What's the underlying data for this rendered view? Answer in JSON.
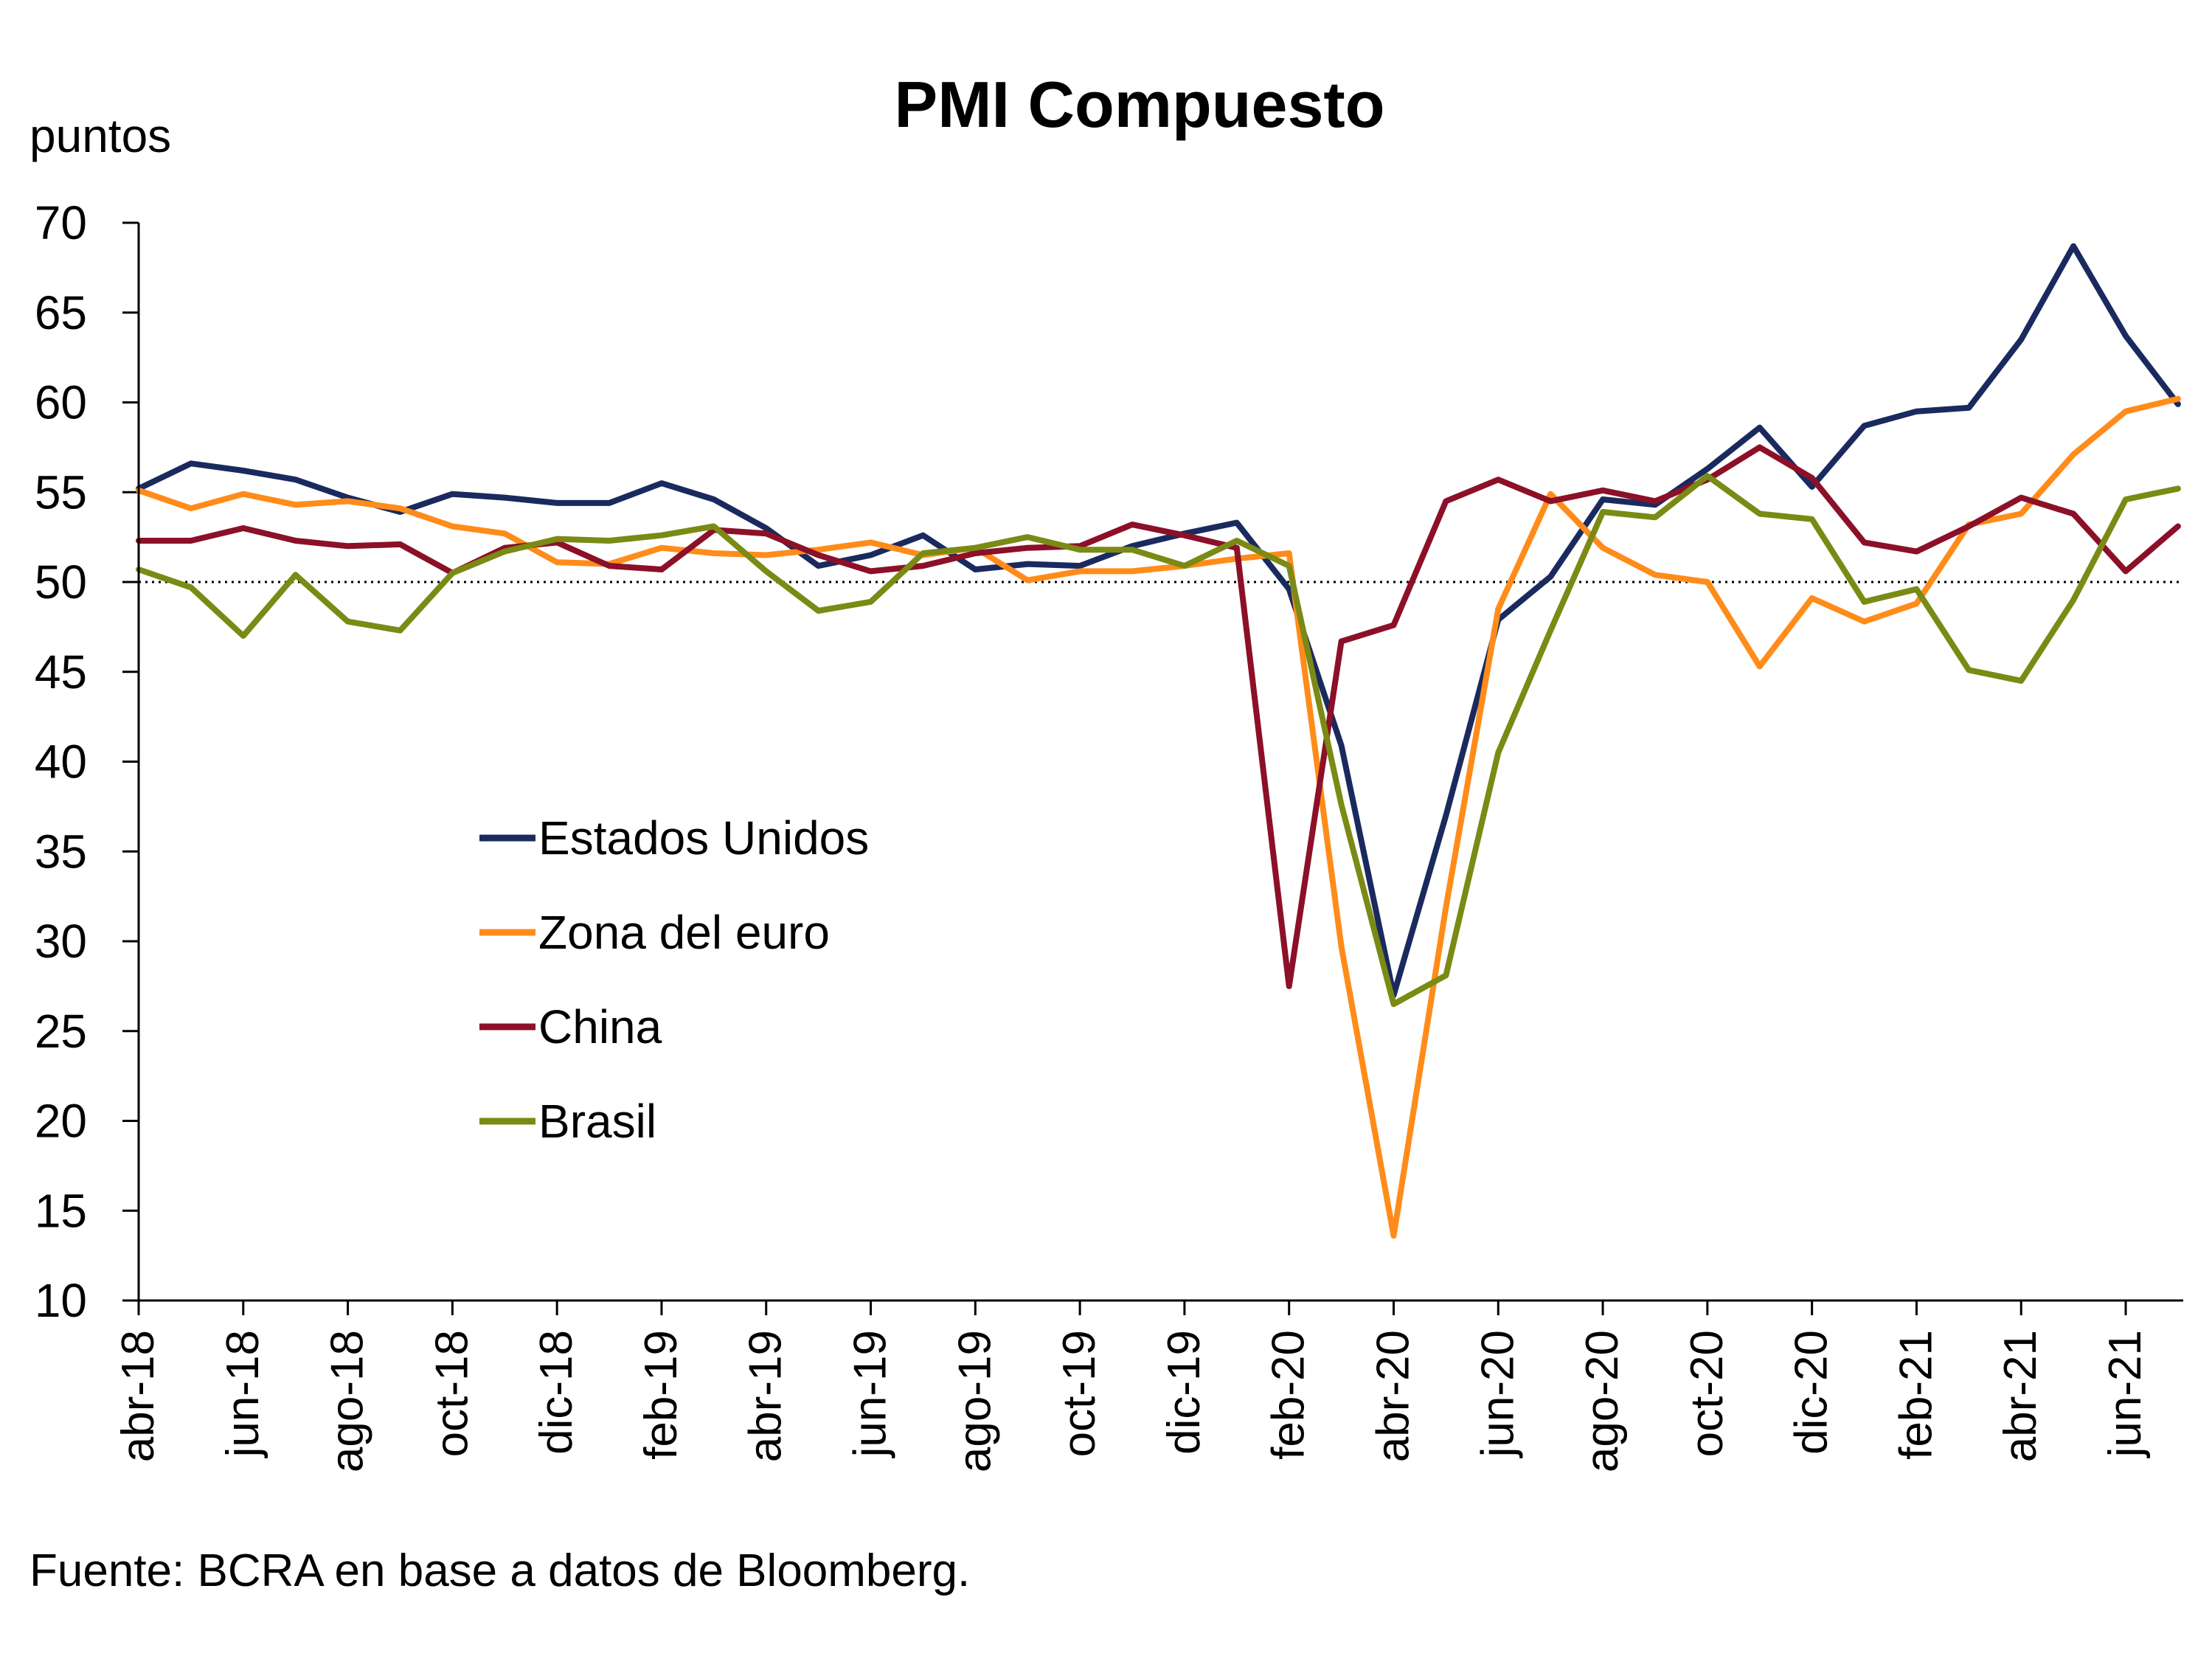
{
  "chart_data": {
    "type": "line",
    "title": "PMI Compuesto",
    "ylabel": "puntos",
    "xlabel": "",
    "ylim": [
      10,
      70
    ],
    "yticks": [
      10,
      15,
      20,
      25,
      30,
      35,
      40,
      45,
      50,
      55,
      60,
      65,
      70
    ],
    "reference_line": 50,
    "grid": false,
    "legend_position": "center-left",
    "x": [
      "abr-18",
      "may-18",
      "jun-18",
      "jul-18",
      "ago-18",
      "sep-18",
      "oct-18",
      "nov-18",
      "dic-18",
      "ene-19",
      "feb-19",
      "mar-19",
      "abr-19",
      "may-19",
      "jun-19",
      "jul-19",
      "ago-19",
      "sep-19",
      "oct-19",
      "nov-19",
      "dic-19",
      "ene-20",
      "feb-20",
      "mar-20",
      "abr-20",
      "may-20",
      "jun-20",
      "jul-20",
      "ago-20",
      "sep-20",
      "oct-20",
      "nov-20",
      "dic-20",
      "ene-21",
      "feb-21",
      "mar-21",
      "abr-21",
      "may-21",
      "jun-21",
      "jul-21"
    ],
    "x_tick_labels": [
      "abr-18",
      "jun-18",
      "ago-18",
      "oct-18",
      "dic-18",
      "feb-19",
      "abr-19",
      "jun-19",
      "ago-19",
      "oct-19",
      "dic-19",
      "feb-20",
      "abr-20",
      "jun-20",
      "ago-20",
      "oct-20",
      "dic-20",
      "feb-21",
      "abr-21",
      "jun-21"
    ],
    "series": [
      {
        "name": "Estados Unidos",
        "color": "#1a2a5e",
        "values": [
          55.2,
          56.6,
          56.2,
          55.7,
          54.7,
          53.9,
          54.9,
          54.7,
          54.4,
          54.4,
          55.5,
          54.6,
          53.0,
          50.9,
          51.5,
          52.6,
          50.7,
          51.0,
          50.9,
          52.0,
          52.7,
          53.3,
          49.6,
          40.9,
          27.0,
          37.0,
          47.9,
          50.3,
          54.6,
          54.3,
          56.3,
          58.6,
          55.3,
          58.7,
          59.5,
          59.7,
          63.5,
          68.7,
          63.7,
          59.9
        ]
      },
      {
        "name": "Zona del euro",
        "color": "#ff8c1a",
        "values": [
          55.1,
          54.1,
          54.9,
          54.3,
          54.5,
          54.1,
          53.1,
          52.7,
          51.1,
          51.0,
          51.9,
          51.6,
          51.5,
          51.8,
          52.2,
          51.5,
          51.9,
          50.1,
          50.6,
          50.6,
          50.9,
          51.3,
          51.6,
          29.7,
          13.6,
          31.9,
          48.5,
          54.9,
          51.9,
          50.4,
          50.0,
          45.3,
          49.1,
          47.8,
          48.8,
          53.2,
          53.8,
          57.1,
          59.5,
          60.2
        ]
      },
      {
        "name": "China",
        "color": "#8b1028",
        "values": [
          52.3,
          52.3,
          53.0,
          52.3,
          52.0,
          52.1,
          50.5,
          51.9,
          52.2,
          50.9,
          50.7,
          52.9,
          52.7,
          51.5,
          50.6,
          50.9,
          51.6,
          51.9,
          52.0,
          53.2,
          52.6,
          51.9,
          27.5,
          46.7,
          47.6,
          54.5,
          55.7,
          54.5,
          55.1,
          54.5,
          55.7,
          57.5,
          55.8,
          52.2,
          51.7,
          53.1,
          54.7,
          53.8,
          50.6,
          53.1
        ]
      },
      {
        "name": "Brasil",
        "color": "#7a8a14",
        "values": [
          50.7,
          49.7,
          47.0,
          50.4,
          47.8,
          47.3,
          50.5,
          51.7,
          52.4,
          52.3,
          52.6,
          53.1,
          50.6,
          48.4,
          48.9,
          51.6,
          51.9,
          52.5,
          51.8,
          51.8,
          50.9,
          52.3,
          50.9,
          37.6,
          26.5,
          28.1,
          40.5,
          47.3,
          53.9,
          53.6,
          55.9,
          53.8,
          53.5,
          48.9,
          49.6,
          45.1,
          44.5,
          49.0,
          54.6,
          55.2
        ]
      }
    ]
  },
  "source_note": "Fuente: BCRA en base a datos de Bloomberg."
}
